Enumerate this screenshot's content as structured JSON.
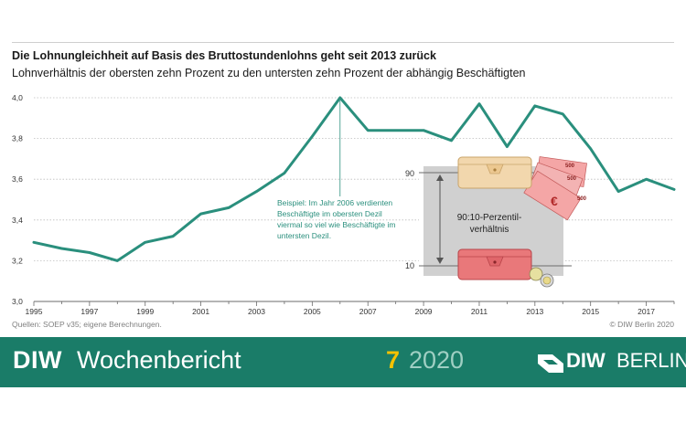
{
  "header": {
    "title": "Die Lohnungleichheit auf Basis des Bruttostundenlohns geht seit 2013 zurück",
    "subtitle": "Lohnverhältnis der obersten zehn Prozent zu den untersten zehn Prozent der abhängig Beschäftigten"
  },
  "chart_data": {
    "type": "line",
    "title": "Die Lohnungleichheit auf Basis des Bruttostundenlohns geht seit 2013 zurück",
    "subtitle": "Lohnverhältnis der obersten zehn Prozent zu den untersten zehn Prozent der abhängig Beschäftigten",
    "xlabel": "",
    "ylabel": "",
    "x": [
      1995,
      1996,
      1997,
      1998,
      1999,
      2000,
      2001,
      2002,
      2003,
      2004,
      2005,
      2006,
      2007,
      2008,
      2009,
      2010,
      2011,
      2012,
      2013,
      2014,
      2015,
      2016,
      2017,
      2018
    ],
    "series": [
      {
        "name": "Lohnverhältnis 90:10",
        "values": [
          3.29,
          3.26,
          3.24,
          3.2,
          3.29,
          3.32,
          3.43,
          3.46,
          3.54,
          3.63,
          3.81,
          4.0,
          3.84,
          3.84,
          3.84,
          3.79,
          3.97,
          3.76,
          3.96,
          3.92,
          3.75,
          3.54,
          3.6,
          3.55
        ]
      }
    ],
    "xlim": [
      1995,
      2018
    ],
    "ylim": [
      3.0,
      4.0
    ],
    "yticks": [
      3.0,
      3.2,
      3.4,
      3.6,
      3.8,
      4.0
    ],
    "ytick_labels": [
      "3,0",
      "3,2",
      "3,4",
      "3,6",
      "3,8",
      "4,0"
    ],
    "xticks": [
      1995,
      1997,
      1999,
      2001,
      2003,
      2005,
      2007,
      2009,
      2011,
      2013,
      2015,
      2017
    ],
    "grid": true,
    "annotation": {
      "year": 2006,
      "lines": [
        "Beispiel: Im Jahr 2006 verdienten",
        "Beschäftigte im obersten Dezil",
        "viermal so viel wie Beschäftigte im",
        "untersten Dezil."
      ]
    },
    "inset": {
      "label_lines": [
        "90:10-Perzentil-",
        "verhältnis"
      ],
      "upper_label": "90",
      "lower_label": "10",
      "note_value": "500"
    }
  },
  "sources": "Quellen: SOEP v35; eigene Berechnungen.",
  "copyright": "© DIW Berlin 2020",
  "footer": {
    "brand": "DIW",
    "title": "Wochenbericht",
    "issue": "7",
    "year": "2020",
    "logo_diw": "DIW",
    "logo_berlin": "BERLIN"
  },
  "colors": {
    "line": "#2a8f7d",
    "footer_bg": "#1a7c68",
    "issue": "#f5c200",
    "year": "#9fcfc3",
    "inset_grey": "#d0d0d0",
    "wallet_top": "#f2d7ad",
    "wallet_bottom": "#e9787a",
    "banknote": "#f4a6a6"
  }
}
